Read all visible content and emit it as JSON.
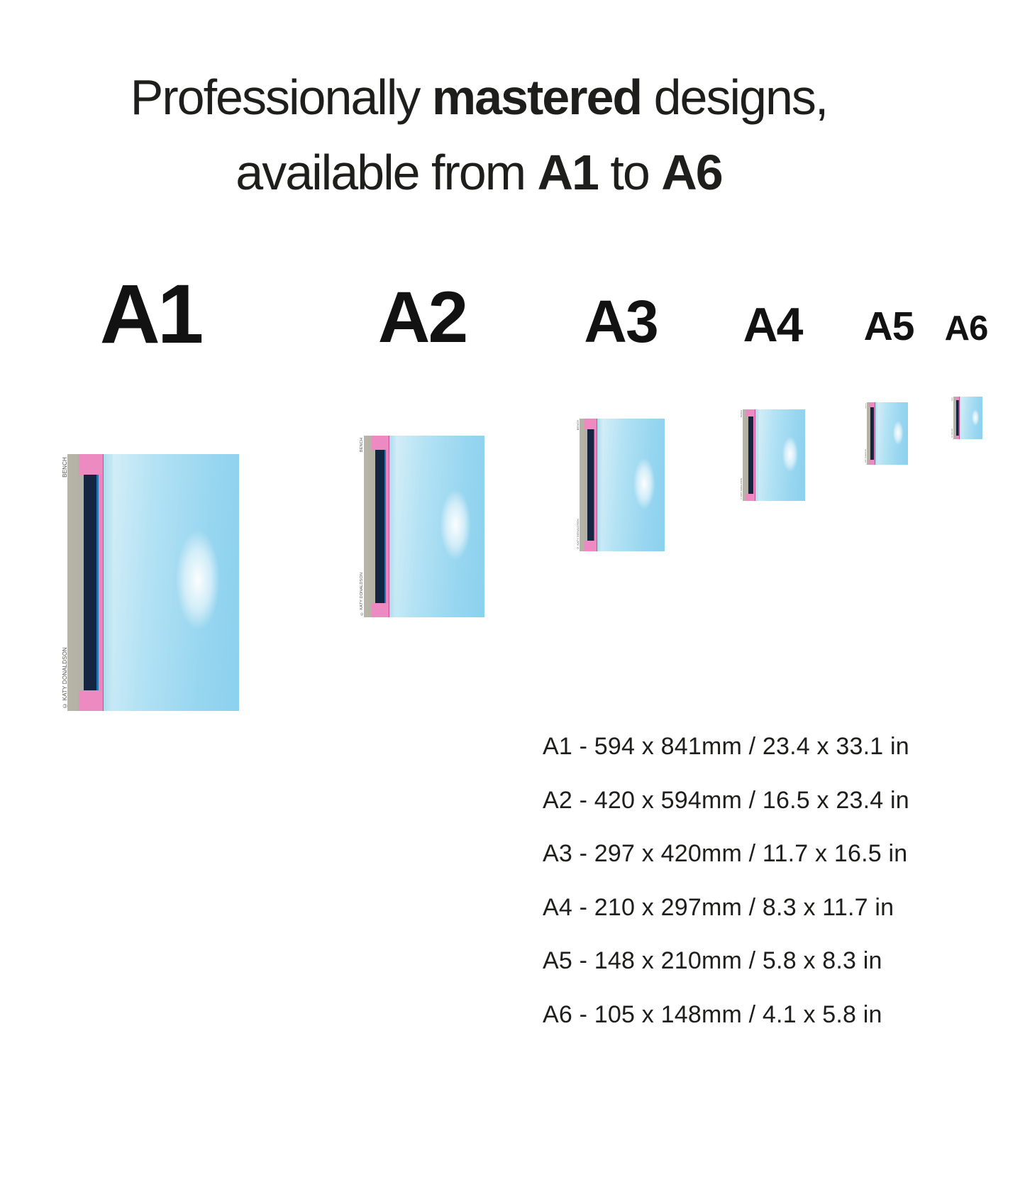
{
  "title": {
    "line1_pre": "Professionally ",
    "line1_bold": "mastered",
    "line1_post": " designs,",
    "line2_pre": "available from ",
    "line2_bold_start": "A1",
    "line2_mid": " to ",
    "line2_bold_end": "A6"
  },
  "size_labels": [
    "A1",
    "A2",
    "A3",
    "A4",
    "A5",
    "A6"
  ],
  "poster_artwork": {
    "title_caption": "BENCH",
    "credit_caption": "© KATY DONALDSON",
    "colors": {
      "sand": "#b4b1a5",
      "sea_blue": "#1e74ae",
      "shore": "#cdeaf5",
      "sky": "#a5dcf3",
      "cloud": "#ffffff",
      "bench_pink": "#ef83be",
      "bench_navy": "#132541"
    }
  },
  "size_specs": [
    "A1 - 594 x 841mm / 23.4 x 33.1 in",
    "A2 - 420 x 594mm / 16.5 x 23.4 in",
    "A3 - 297 x 420mm / 11.7 x 16.5 in",
    "A4 - 210 x 297mm / 8.3 x 11.7 in",
    "A5 - 148 x 210mm / 5.8 x 8.3 in",
    "A6 - 105 x 148mm / 4.1 x 5.8 in"
  ]
}
